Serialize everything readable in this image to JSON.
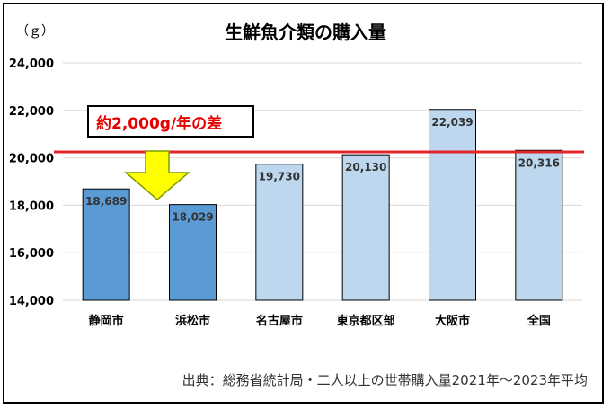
{
  "unit_label": "（ｇ）",
  "source_note": "出典：総務省統計局・二人以上の世帯購入量2021年～2023年平均",
  "annotation": "約2,000g/年の差",
  "colors": {
    "highlight_bar": "#5b9bd5",
    "other_bar": "#bdd7ee",
    "reference_line": "#e3242b",
    "arrow_fill": "#ffff00",
    "arrow_stroke": "#7f9e00",
    "grid": "#d9d9d9",
    "annotation_text": "#e60000"
  },
  "chart_data": {
    "type": "bar",
    "title": "生鮮魚介類の購入量",
    "xlabel": "",
    "ylabel": "（ｇ）",
    "categories": [
      "静岡市",
      "浜松市",
      "名古屋市",
      "東京都区部",
      "大阪市",
      "全国"
    ],
    "values": [
      18689,
      18029,
      19730,
      20130,
      22039,
      20316
    ],
    "value_labels": [
      "18,689",
      "18,029",
      "19,730",
      "20,130",
      "22,039",
      "20,316"
    ],
    "highlight": [
      true,
      true,
      false,
      false,
      false,
      false
    ],
    "ylim": [
      14000,
      24000
    ],
    "yticks": [
      14000,
      16000,
      18000,
      20000,
      22000,
      24000
    ],
    "ytick_labels": [
      "14,000",
      "16,000",
      "18,000",
      "20,000",
      "22,000",
      "24,000"
    ],
    "reference_line_value": 20250,
    "grid": true,
    "legend": "none"
  }
}
